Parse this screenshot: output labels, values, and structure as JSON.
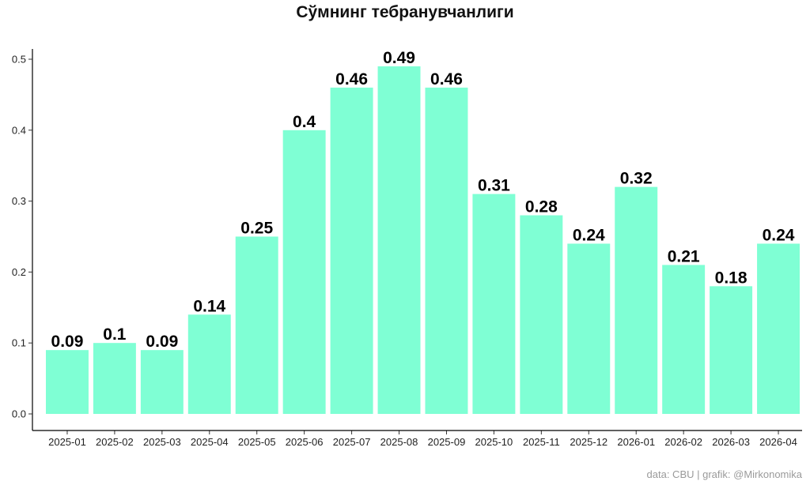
{
  "chart_data": {
    "type": "bar",
    "title": "Сўмнинг тебранувчанлиги",
    "xlabel": "",
    "ylabel": "",
    "categories": [
      "2025-01",
      "2025-02",
      "2025-03",
      "2025-04",
      "2025-05",
      "2025-06",
      "2025-07",
      "2025-08",
      "2025-09",
      "2025-10",
      "2025-11",
      "2025-12",
      "2026-01",
      "2026-02",
      "2026-03",
      "2026-04"
    ],
    "values": [
      0.09,
      0.1,
      0.09,
      0.14,
      0.25,
      0.4,
      0.46,
      0.49,
      0.46,
      0.31,
      0.28,
      0.24,
      0.32,
      0.21,
      0.18,
      0.24
    ],
    "data_labels": [
      "0.09",
      "0.1",
      "0.09",
      "0.14",
      "0.25",
      "0.4",
      "0.46",
      "0.49",
      "0.46",
      "0.31",
      "0.28",
      "0.24",
      "0.32",
      "0.21",
      "0.18",
      "0.24"
    ],
    "ylim": [
      0,
      0.51
    ],
    "yticks": [
      0.0,
      0.1,
      0.2,
      0.3,
      0.4,
      0.5
    ],
    "ytick_labels": [
      "0.0",
      "0.1",
      "0.2",
      "0.3",
      "0.4",
      "0.5"
    ],
    "bar_color": "#7fffd4",
    "grid": false,
    "legend": "none"
  },
  "caption": "data: CBU | grafik: @Mirkonomika"
}
